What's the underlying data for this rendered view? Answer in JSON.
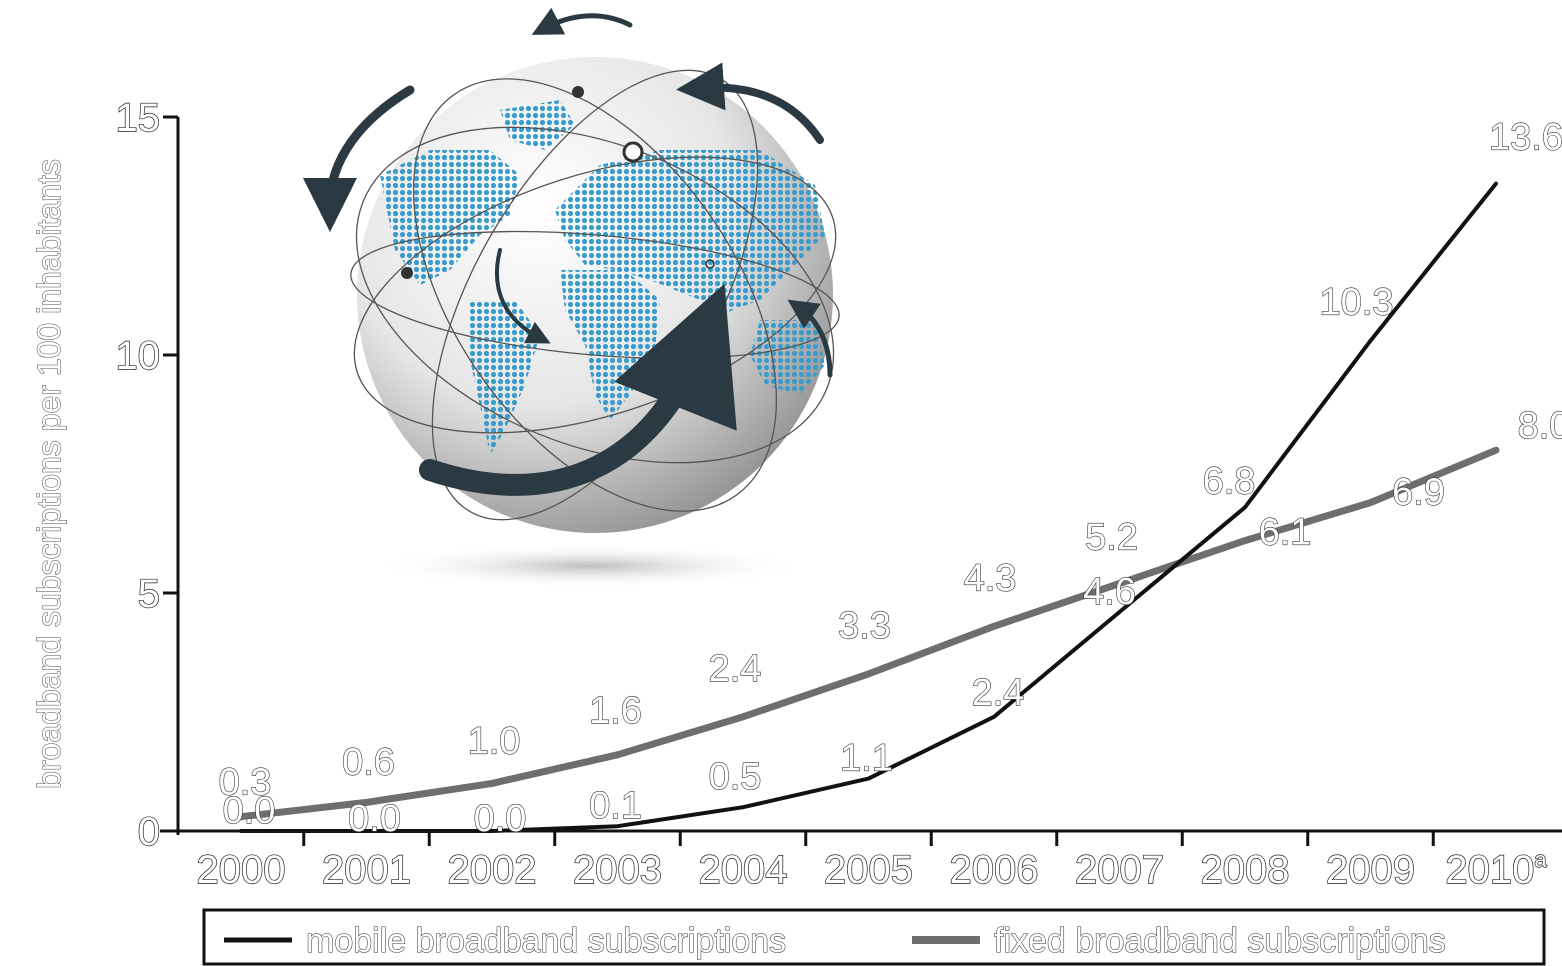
{
  "chart_data": {
    "type": "line",
    "categories": [
      "2000",
      "2001",
      "2002",
      "2003",
      "2004",
      "2005",
      "2006",
      "2007",
      "2008",
      "2009",
      "2010"
    ],
    "category_superscripts": {
      "2010": "a"
    },
    "ylabel": "broadband subscriptions per 100 inhabitants",
    "ylim": [
      0,
      15
    ],
    "yticks": [
      "0",
      "5",
      "10",
      "15"
    ],
    "series": [
      {
        "name": "mobile broadband subscriptions",
        "color": "#111111",
        "values": [
          0.0,
          0.0,
          0.0,
          0.1,
          0.5,
          1.1,
          2.4,
          4.6,
          6.8,
          10.3,
          13.6
        ],
        "labels": [
          "0.0",
          "0.0",
          "0.0",
          "0.1",
          "0.5",
          "1.1",
          "2.4",
          "4.6",
          "6.8",
          "10.3",
          "13.6"
        ]
      },
      {
        "name": "fixed broadband subscriptions",
        "color": "#6e6e6e",
        "values": [
          0.3,
          0.6,
          1.0,
          1.6,
          2.4,
          3.3,
          4.3,
          5.2,
          6.1,
          6.9,
          8.0
        ],
        "labels": [
          "0.3",
          "0.6",
          "1.0",
          "1.6",
          "2.4",
          "3.3",
          "4.3",
          "5.2",
          "6.1",
          "6.9",
          "8.0"
        ]
      }
    ],
    "legend_position": "bottom",
    "illustration": "globe-icon"
  }
}
